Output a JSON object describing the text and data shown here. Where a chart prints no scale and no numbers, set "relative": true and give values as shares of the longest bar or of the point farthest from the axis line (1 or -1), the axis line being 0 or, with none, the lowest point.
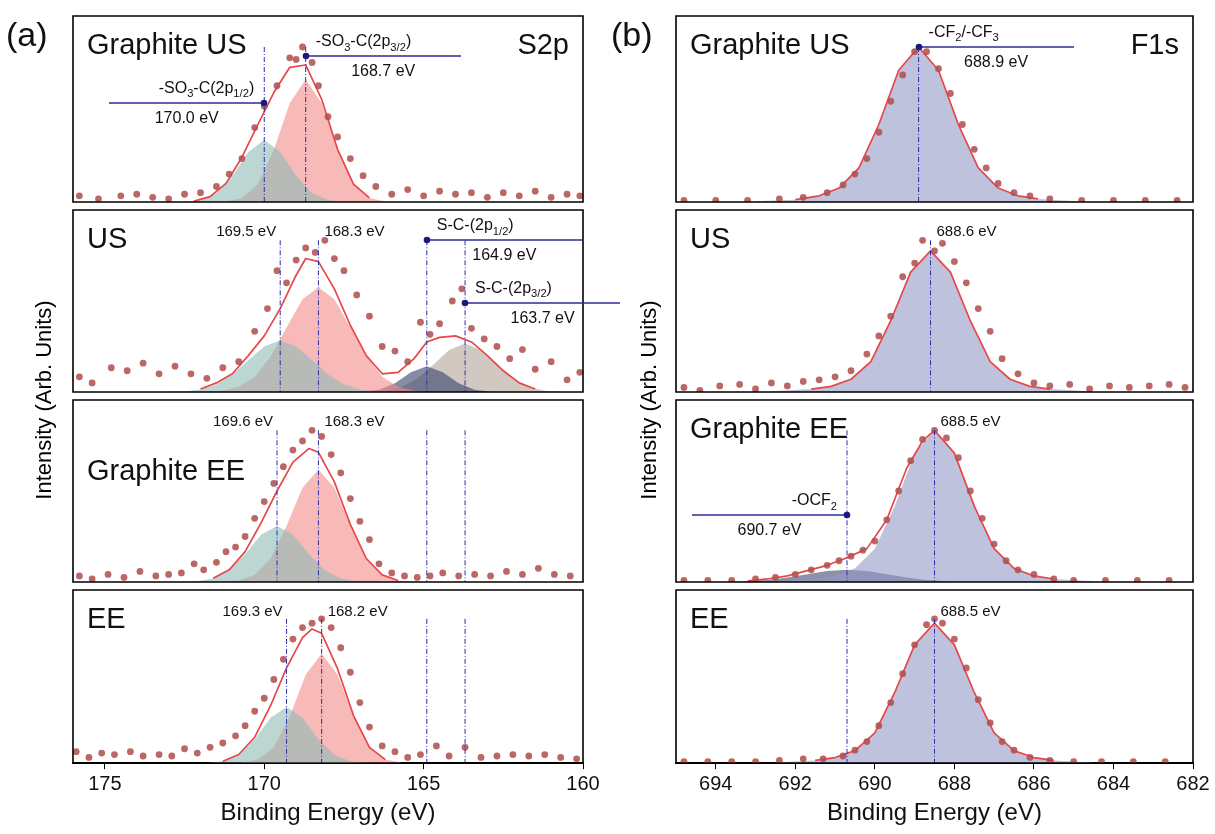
{
  "chart_data": [
    {
      "type": "line",
      "title": "Graphite US",
      "subtitle": "S2p",
      "ylabel": "Intensity (Arb. Units)",
      "relative": true,
      "tick_labels": false,
      "xlim": [
        176,
        160
      ],
      "xticks": [
        175,
        170,
        165,
        160
      ],
      "annotations": [
        "(a)",
        {
          "text": "-SO$_{3}$-C(2p$_{1/2}$)",
          "x": 170.0,
          "y": 0.64
        },
        {
          "text": "-SO$_{3}$-C(2p$_{3/2}$)",
          "x": 168.7,
          "y": 0.94
        }
      ],
      "ref_lines": [
        {
          "axis": "x",
          "value": 170.0,
          "label": "170.0 eV"
        },
        {
          "axis": "x",
          "value": 168.7,
          "label": "168.7 eV"
        }
      ],
      "series": [
        {
          "type": "area",
          "color": "#8dbab6",
          "x": [
            172.5,
            172.0,
            171.5,
            171.0,
            170.5,
            170.0,
            169.5,
            169.0,
            168.5,
            168.0,
            167.5
          ],
          "values": [
            0.002,
            0.013,
            0.058,
            0.17,
            0.323,
            0.4,
            0.323,
            0.17,
            0.058,
            0.013,
            0.002
          ]
        },
        {
          "type": "area",
          "color": "#f48a8a",
          "x": [
            171.2,
            170.7,
            170.2,
            169.7,
            169.2,
            168.7,
            168.2,
            167.7,
            167.2,
            166.7,
            166.2
          ],
          "values": [
            0.004,
            0.026,
            0.115,
            0.336,
            0.638,
            0.79,
            0.638,
            0.336,
            0.115,
            0.026,
            0.004
          ]
        },
        {
          "type": "line",
          "color": "#e8474a",
          "x": [
            172.2,
            171.7,
            171.2,
            170.7,
            170.2,
            169.7,
            169.2,
            168.7,
            168.2,
            167.7,
            167.2,
            166.7
          ],
          "values": [
            0.006,
            0.035,
            0.12,
            0.289,
            0.5,
            0.706,
            0.869,
            0.884,
            0.663,
            0.34,
            0.115,
            0.026
          ]
        },
        {
          "type": "scatter",
          "color": "#b0504e",
          "x": [
            175.8,
            175.2,
            174.5,
            174,
            173.5,
            173,
            172.5,
            172,
            171.5,
            171.1,
            170.7,
            170.3,
            170.0,
            169.6,
            169.2,
            169.0,
            168.8,
            168.5,
            168.3,
            168,
            167.7,
            167.3,
            166.9,
            166.5,
            166,
            165.5,
            165,
            164.5,
            164,
            163.5,
            163,
            162.5,
            162,
            161.5,
            161,
            160.5,
            160.1
          ],
          "values": [
            0.04,
            0.02,
            0.04,
            0.05,
            0.03,
            0.02,
            0.05,
            0.06,
            0.1,
            0.18,
            0.28,
            0.48,
            0.62,
            0.75,
            0.93,
            0.92,
            1.0,
            0.9,
            0.75,
            0.55,
            0.42,
            0.28,
            0.17,
            0.1,
            0.05,
            0.08,
            0.04,
            0.07,
            0.05,
            0.06,
            0.03,
            0.06,
            0.04,
            0.07,
            0.03,
            0.05,
            0.04
          ]
        }
      ]
    },
    {
      "type": "line",
      "title": "US",
      "relative": true,
      "tick_labels": false,
      "xlim": [
        176,
        160
      ],
      "xticks": [
        175,
        170,
        165,
        160
      ],
      "annotations": [
        {
          "text": "S-C-(2p$_{1/2}$)",
          "x": 164.9,
          "y": 1.0
        },
        {
          "text": "S-C-(2p$_{3/2}$)",
          "x": 163.7,
          "y": 0.59
        }
      ],
      "ref_lines": [
        {
          "axis": "x",
          "value": 169.5,
          "label": "169.5 eV"
        },
        {
          "axis": "x",
          "value": 168.3,
          "label": "168.3 eV"
        },
        {
          "axis": "x",
          "value": 164.9,
          "label": "164.9 eV"
        },
        {
          "axis": "x",
          "value": 163.7,
          "label": "163.7 eV"
        }
      ],
      "series": [
        {
          "type": "area",
          "color": "#8dbab6",
          "x": [
            173,
            172.5,
            172,
            171.5,
            171,
            170.5,
            170,
            169.5,
            169,
            168.5,
            168,
            167.5,
            167,
            166.5,
            166
          ],
          "values": [
            0.001,
            0.004,
            0.017,
            0.05,
            0.115,
            0.21,
            0.3,
            0.34,
            0.3,
            0.21,
            0.115,
            0.05,
            0.017,
            0.004,
            0.001
          ]
        },
        {
          "type": "area",
          "color": "#f48a8a",
          "x": [
            171.8,
            171.3,
            170.8,
            170.3,
            169.8,
            169.3,
            168.8,
            168.3,
            167.8,
            167.3,
            166.8,
            166.3,
            165.8,
            165.3,
            164.8
          ],
          "values": [
            0.002,
            0.009,
            0.034,
            0.1,
            0.234,
            0.426,
            0.612,
            0.69,
            0.612,
            0.426,
            0.234,
            0.1,
            0.034,
            0.009,
            0.002
          ]
        },
        {
          "type": "area",
          "color": "#33406a",
          "x": [
            166.9,
            166.4,
            165.9,
            165.4,
            164.9,
            164.4,
            163.9,
            163.4,
            162.9
          ],
          "values": [
            0.002,
            0.015,
            0.057,
            0.13,
            0.17,
            0.13,
            0.057,
            0.015,
            0.002
          ]
        },
        {
          "type": "area",
          "color": "#b2a597",
          "x": [
            166.7,
            166.2,
            165.7,
            165.2,
            164.7,
            164.2,
            163.7,
            163.2,
            162.7,
            162.2,
            161.7,
            161.2,
            160.7
          ],
          "values": [
            0.002,
            0.009,
            0.032,
            0.088,
            0.18,
            0.277,
            0.32,
            0.277,
            0.18,
            0.088,
            0.032,
            0.009,
            0.002
          ]
        },
        {
          "type": "line",
          "color": "#e8474a",
          "x": [
            172,
            171.5,
            171,
            170.5,
            170,
            169.5,
            169,
            168.7,
            168.3,
            167.8,
            167.3,
            166.8,
            166.3,
            165.8,
            165.3,
            164.9,
            164.5,
            164,
            163.5,
            163,
            162.5,
            162,
            161.5
          ],
          "values": [
            0.02,
            0.06,
            0.12,
            0.24,
            0.37,
            0.55,
            0.77,
            0.88,
            0.86,
            0.68,
            0.44,
            0.24,
            0.12,
            0.13,
            0.22,
            0.33,
            0.36,
            0.37,
            0.33,
            0.24,
            0.14,
            0.06,
            0.02
          ]
        },
        {
          "type": "scatter",
          "color": "#b0504e",
          "x": [
            175.8,
            175.4,
            174.8,
            174.3,
            173.8,
            173.3,
            172.8,
            172.3,
            171.8,
            171.3,
            170.8,
            170.3,
            169.9,
            169.6,
            169.3,
            169.0,
            168.7,
            168.4,
            168.1,
            167.8,
            167.5,
            167.1,
            166.7,
            166.3,
            165.9,
            165.5,
            165.1,
            164.8,
            164.5,
            164.1,
            163.8,
            163.5,
            163.1,
            162.7,
            162.3,
            161.9,
            161.5,
            161,
            160.5,
            160.1
          ],
          "values": [
            0.1,
            0.06,
            0.16,
            0.14,
            0.19,
            0.12,
            0.17,
            0.12,
            0.09,
            0.16,
            0.2,
            0.4,
            0.55,
            0.8,
            0.72,
            0.87,
            0.95,
            0.92,
            1.0,
            0.88,
            0.8,
            0.64,
            0.5,
            0.3,
            0.27,
            0.2,
            0.46,
            0.38,
            0.45,
            0.6,
            0.68,
            0.42,
            0.35,
            0.3,
            0.22,
            0.28,
            0.15,
            0.2,
            0.08,
            0.13
          ]
        }
      ]
    },
    {
      "type": "line",
      "title": "Graphite EE",
      "relative": true,
      "tick_labels": false,
      "xlim": [
        176,
        160
      ],
      "xticks": [
        175,
        170,
        165,
        160
      ],
      "ref_lines": [
        {
          "axis": "x",
          "value": 169.6,
          "label": "169.6 eV"
        },
        {
          "axis": "x",
          "value": 168.3,
          "label": "168.3 eV"
        },
        {
          "axis": "x",
          "value": 164.9
        },
        {
          "axis": "x",
          "value": 163.7
        }
      ],
      "series": [
        {
          "type": "area",
          "color": "#8dbab6",
          "x": [
            172.6,
            172.1,
            171.6,
            171.1,
            170.6,
            170.1,
            169.6,
            169.1,
            168.6,
            168.1,
            167.6,
            167.1,
            166.6
          ],
          "values": [
            0.001,
            0.005,
            0.023,
            0.078,
            0.185,
            0.311,
            0.37,
            0.311,
            0.185,
            0.078,
            0.023,
            0.005,
            0.001
          ]
        },
        {
          "type": "area",
          "color": "#f48a8a",
          "x": [
            171.3,
            170.8,
            170.3,
            169.8,
            169.3,
            168.8,
            168.3,
            167.8,
            167.3,
            166.8,
            166.3,
            165.8,
            165.3
          ],
          "values": [
            0.001,
            0.01,
            0.047,
            0.155,
            0.37,
            0.622,
            0.74,
            0.622,
            0.37,
            0.155,
            0.047,
            0.01,
            0.001
          ]
        },
        {
          "type": "line",
          "color": "#e8474a",
          "x": [
            171.6,
            171.1,
            170.6,
            170.1,
            169.6,
            169.1,
            168.6,
            168.3,
            167.8,
            167.3,
            166.8,
            166.3,
            165.8
          ],
          "values": [
            0.024,
            0.08,
            0.2,
            0.39,
            0.6,
            0.79,
            0.88,
            0.855,
            0.66,
            0.38,
            0.155,
            0.047,
            0.01
          ]
        },
        {
          "type": "scatter",
          "color": "#b0504e",
          "x": [
            175.8,
            175.4,
            174.9,
            174.4,
            173.9,
            173.4,
            173,
            172.6,
            172.2,
            171.9,
            171.5,
            171.2,
            170.9,
            170.6,
            170.3,
            170.0,
            169.7,
            169.4,
            169.1,
            168.8,
            168.5,
            168.2,
            167.9,
            167.6,
            167.3,
            167,
            166.7,
            166.4,
            166,
            165.6,
            165.2,
            164.8,
            164.4,
            163.9,
            163.4,
            162.9,
            162.4,
            161.9,
            161.4,
            160.9,
            160.4
          ],
          "values": [
            0.04,
            0.02,
            0.05,
            0.03,
            0.07,
            0.04,
            0.05,
            0.06,
            0.12,
            0.08,
            0.13,
            0.2,
            0.23,
            0.3,
            0.42,
            0.53,
            0.65,
            0.76,
            0.87,
            0.93,
            1.0,
            0.96,
            0.84,
            0.72,
            0.55,
            0.4,
            0.28,
            0.12,
            0.06,
            0.04,
            0.03,
            0.04,
            0.06,
            0.04,
            0.05,
            0.04,
            0.07,
            0.05,
            0.09,
            0.05,
            0.04
          ]
        }
      ]
    },
    {
      "type": "line",
      "title": "EE",
      "xlabel": "Binding Energy (eV)",
      "relative": true,
      "tick_labels": "x",
      "xlim": [
        176,
        160
      ],
      "xticks": [
        175,
        170,
        165,
        160
      ],
      "ref_lines": [
        {
          "axis": "x",
          "value": 169.3,
          "label": "169.3 eV"
        },
        {
          "axis": "x",
          "value": 168.2,
          "label": "168.2 eV"
        },
        {
          "axis": "x",
          "value": 164.9
        },
        {
          "axis": "x",
          "value": 163.7
        }
      ],
      "series": [
        {
          "type": "area",
          "color": "#8dbab6",
          "x": [
            171.8,
            171.3,
            170.8,
            170.3,
            169.8,
            169.3,
            168.8,
            168.3,
            167.8,
            167.3,
            166.8
          ],
          "values": [
            0.002,
            0.013,
            0.057,
            0.166,
            0.315,
            0.39,
            0.315,
            0.166,
            0.057,
            0.013,
            0.002
          ]
        },
        {
          "type": "area",
          "color": "#f48a8a",
          "x": [
            170.7,
            170.2,
            169.7,
            169.2,
            168.7,
            168.2,
            167.7,
            167.2,
            166.7,
            166.2,
            165.7
          ],
          "values": [
            0.004,
            0.025,
            0.111,
            0.323,
            0.613,
            0.76,
            0.613,
            0.323,
            0.111,
            0.025,
            0.004
          ]
        },
        {
          "type": "line",
          "color": "#e8474a",
          "x": [
            171.3,
            170.8,
            170.3,
            169.8,
            169.3,
            168.8,
            168.5,
            168.2,
            167.7,
            167.2,
            166.7,
            166.2
          ],
          "values": [
            0.013,
            0.06,
            0.18,
            0.4,
            0.66,
            0.87,
            0.93,
            0.9,
            0.655,
            0.33,
            0.11,
            0.025
          ]
        },
        {
          "type": "scatter",
          "color": "#b0504e",
          "x": [
            175.9,
            175.5,
            175.1,
            174.7,
            174.2,
            173.8,
            173.3,
            172.9,
            172.5,
            172.1,
            171.7,
            171.3,
            170.9,
            170.6,
            170.3,
            170,
            169.7,
            169.4,
            169.1,
            168.8,
            168.5,
            168.2,
            167.9,
            167.6,
            167.3,
            167,
            166.7,
            166.3,
            165.9,
            165.5,
            165.1,
            164.6,
            164.2,
            163.7,
            163.2,
            162.7,
            162.2,
            161.7,
            161.2,
            160.7,
            160.2
          ],
          "values": [
            0.08,
            0.04,
            0.07,
            0.06,
            0.08,
            0.05,
            0.06,
            0.05,
            0.1,
            0.07,
            0.11,
            0.14,
            0.19,
            0.26,
            0.36,
            0.45,
            0.58,
            0.72,
            0.86,
            0.94,
            0.97,
            1.0,
            0.94,
            0.8,
            0.63,
            0.42,
            0.25,
            0.12,
            0.08,
            0.04,
            0.06,
            0.12,
            0.05,
            0.11,
            0.04,
            0.05,
            0.06,
            0.05,
            0.06,
            0.04,
            0.03
          ]
        }
      ]
    },
    {
      "type": "line",
      "title": "Graphite US",
      "subtitle": "F1s",
      "ylabel": "Intensity (Arb. Units)",
      "relative": true,
      "tick_labels": false,
      "xlim": [
        695,
        682
      ],
      "xticks": [
        694,
        692,
        690,
        688,
        686,
        684,
        682
      ],
      "annotations": [
        "(b)",
        {
          "text": "-CF$_{2}$/-CF$_{3}$",
          "x": 688.9,
          "y": 1.0
        }
      ],
      "ref_lines": [
        {
          "axis": "x",
          "value": 688.9,
          "label": "688.9 eV"
        }
      ],
      "series": [
        {
          "type": "area",
          "color": "#9499c4",
          "x": [
            693,
            692,
            691.4,
            690.9,
            690.4,
            689.9,
            689.4,
            688.9,
            688.4,
            687.9,
            687.4,
            686.9,
            686.4,
            685.9,
            684.9
          ],
          "values": [
            0.005,
            0.015,
            0.04,
            0.09,
            0.22,
            0.5,
            0.85,
            1.0,
            0.85,
            0.5,
            0.22,
            0.09,
            0.04,
            0.02,
            0.005
          ]
        },
        {
          "type": "line",
          "color": "#e8474a",
          "x": [
            692,
            691.4,
            690.9,
            690.4,
            689.9,
            689.4,
            688.9,
            688.4,
            687.9,
            687.4,
            686.9,
            686.4,
            685.9
          ],
          "values": [
            0.015,
            0.04,
            0.09,
            0.22,
            0.5,
            0.85,
            1.0,
            0.85,
            0.5,
            0.22,
            0.09,
            0.04,
            0.02
          ]
        },
        {
          "type": "scatter",
          "color": "#b0504e",
          "x": [
            694.8,
            694,
            693.2,
            692.4,
            691.8,
            691.2,
            690.8,
            690.5,
            690.2,
            689.9,
            689.6,
            689.3,
            689.0,
            688.7,
            688.4,
            688.1,
            687.8,
            687.5,
            687.2,
            686.9,
            686.5,
            686.1,
            685.6,
            684.8,
            684,
            683.2,
            682.4
          ],
          "values": [
            0.01,
            0.01,
            0.01,
            0.02,
            0.03,
            0.06,
            0.11,
            0.18,
            0.28,
            0.45,
            0.65,
            0.82,
            0.97,
            0.97,
            0.86,
            0.7,
            0.5,
            0.34,
            0.22,
            0.12,
            0.06,
            0.04,
            0.02,
            0.01,
            0.01,
            0.01,
            0.01
          ]
        }
      ]
    },
    {
      "type": "line",
      "title": "US",
      "relative": true,
      "tick_labels": false,
      "xlim": [
        695,
        682
      ],
      "xticks": [
        694,
        692,
        690,
        688,
        686,
        684,
        682
      ],
      "ref_lines": [
        {
          "axis": "x",
          "value": 688.6,
          "label": "688.6 eV"
        }
      ],
      "series": [
        {
          "type": "area",
          "color": "#9499c4",
          "x": [
            692.6,
            691.6,
            691.1,
            690.6,
            690.1,
            689.6,
            689.1,
            688.6,
            688.1,
            687.6,
            687.1,
            686.6,
            686.1,
            685.6,
            684.6
          ],
          "values": [
            0.005,
            0.019,
            0.037,
            0.084,
            0.2,
            0.47,
            0.79,
            0.93,
            0.79,
            0.47,
            0.2,
            0.084,
            0.037,
            0.019,
            0.005
          ]
        },
        {
          "type": "line",
          "color": "#e8474a",
          "x": [
            691.6,
            691.1,
            690.6,
            690.1,
            689.6,
            689.1,
            688.6,
            688.1,
            687.6,
            687.1,
            686.6,
            686.1,
            685.6
          ],
          "values": [
            0.019,
            0.037,
            0.084,
            0.2,
            0.47,
            0.79,
            0.93,
            0.79,
            0.47,
            0.2,
            0.084,
            0.037,
            0.019
          ]
        },
        {
          "type": "scatter",
          "color": "#b0504e",
          "x": [
            694.8,
            694.4,
            693.9,
            693.4,
            693,
            692.6,
            692.2,
            691.8,
            691.4,
            691,
            690.6,
            690.2,
            689.9,
            689.6,
            689.3,
            689.0,
            688.8,
            688.5,
            688.3,
            688.0,
            687.7,
            687.4,
            687.1,
            686.8,
            686.4,
            686,
            685.6,
            685.1,
            684.6,
            684.1,
            683.6,
            683.1,
            682.6,
            682.2
          ],
          "values": [
            0.03,
            0.01,
            0.04,
            0.05,
            0.02,
            0.06,
            0.04,
            0.07,
            0.08,
            0.1,
            0.14,
            0.25,
            0.37,
            0.5,
            0.76,
            0.85,
            1.0,
            0.93,
            0.98,
            0.86,
            0.72,
            0.55,
            0.4,
            0.22,
            0.12,
            0.06,
            0.04,
            0.05,
            0.02,
            0.04,
            0.03,
            0.04,
            0.05,
            0.03
          ]
        }
      ]
    },
    {
      "type": "line",
      "title": "Graphite EE",
      "relative": true,
      "tick_labels": false,
      "xlim": [
        695,
        682
      ],
      "xticks": [
        694,
        692,
        690,
        688,
        686,
        684,
        682
      ],
      "annotations": [
        {
          "text": "-OCF$_{2}$",
          "x": 690.7,
          "y": 0.44
        }
      ],
      "ref_lines": [
        {
          "axis": "x",
          "value": 688.5,
          "label": "688.5 eV"
        },
        {
          "axis": "x",
          "value": 690.7,
          "label": "690.7 eV"
        }
      ],
      "series": [
        {
          "type": "area",
          "color": "#9499c4",
          "x": [
            692.5,
            691.5,
            691,
            690.5,
            690,
            689.5,
            689,
            688.5,
            688,
            687.5,
            687,
            686.5,
            686,
            685.5,
            684.5
          ],
          "values": [
            0.005,
            0.02,
            0.04,
            0.09,
            0.22,
            0.5,
            0.85,
            1.0,
            0.85,
            0.5,
            0.22,
            0.09,
            0.04,
            0.02,
            0.005
          ]
        },
        {
          "type": "area",
          "color": "#3e4770",
          "x": [
            693.7,
            693.2,
            692.7,
            692.2,
            691.7,
            691.2,
            690.7,
            690.2,
            689.7,
            689.2,
            688.7,
            688.2
          ],
          "values": [
            0.002,
            0.005,
            0.014,
            0.03,
            0.051,
            0.072,
            0.08,
            0.072,
            0.051,
            0.03,
            0.014,
            0.005
          ]
        },
        {
          "type": "line",
          "color": "#e8474a",
          "x": [
            693.2,
            692.7,
            692.2,
            691.7,
            691.2,
            690.7,
            690.2,
            689.7,
            689.2,
            688.8,
            688.5,
            688,
            687.5,
            687,
            686.5,
            686,
            685.5
          ],
          "values": [
            0.008,
            0.02,
            0.04,
            0.075,
            0.11,
            0.16,
            0.22,
            0.41,
            0.75,
            0.93,
            1.0,
            0.85,
            0.5,
            0.22,
            0.09,
            0.04,
            0.02
          ]
        },
        {
          "type": "scatter",
          "color": "#b0504e",
          "x": [
            694.8,
            694.2,
            693.6,
            693,
            692.5,
            692,
            691.6,
            691.2,
            690.9,
            690.6,
            690.3,
            690,
            689.7,
            689.4,
            689.1,
            688.8,
            688.5,
            688.2,
            687.9,
            687.6,
            687.3,
            687,
            686.7,
            686.4,
            686,
            685.5,
            685,
            684.2,
            683.4,
            682.6
          ],
          "values": [
            0.01,
            0.01,
            0.01,
            0.02,
            0.03,
            0.05,
            0.08,
            0.11,
            0.14,
            0.17,
            0.21,
            0.27,
            0.41,
            0.6,
            0.8,
            0.94,
            1.0,
            0.95,
            0.82,
            0.6,
            0.42,
            0.25,
            0.14,
            0.08,
            0.05,
            0.02,
            0.01,
            0.01,
            0.01,
            0.01
          ]
        }
      ]
    },
    {
      "type": "line",
      "title": "EE",
      "xlabel": "Binding Energy (eV)",
      "relative": true,
      "tick_labels": "x",
      "xlim": [
        695,
        682
      ],
      "xticks": [
        694,
        692,
        690,
        688,
        686,
        684,
        682
      ],
      "ref_lines": [
        {
          "axis": "x",
          "value": 688.5,
          "label": "688.5 eV"
        },
        {
          "axis": "x",
          "value": 690.7
        }
      ],
      "series": [
        {
          "type": "area",
          "color": "#9499c4",
          "x": [
            692.5,
            691.5,
            691,
            690.5,
            690,
            689.5,
            689,
            688.5,
            688,
            687.5,
            687,
            686.5,
            686,
            685.5,
            684.5
          ],
          "values": [
            0.005,
            0.019,
            0.039,
            0.087,
            0.21,
            0.49,
            0.82,
            0.97,
            0.82,
            0.49,
            0.21,
            0.087,
            0.039,
            0.019,
            0.005
          ]
        },
        {
          "type": "line",
          "color": "#e8474a",
          "x": [
            691.5,
            691,
            690.5,
            690,
            689.5,
            689,
            688.5,
            688,
            687.5,
            687,
            686.5,
            686,
            685.5
          ],
          "values": [
            0.019,
            0.039,
            0.087,
            0.21,
            0.49,
            0.82,
            0.97,
            0.82,
            0.49,
            0.21,
            0.087,
            0.039,
            0.019
          ]
        },
        {
          "type": "scatter",
          "color": "#b0504e",
          "x": [
            694.8,
            694.2,
            693.6,
            693,
            692.4,
            691.8,
            691.3,
            690.8,
            690.5,
            690.2,
            689.9,
            689.6,
            689.3,
            689,
            688.7,
            688.5,
            688.3,
            688,
            687.7,
            687.4,
            687.1,
            686.8,
            686.5,
            686.1,
            685.6,
            685,
            684.3,
            683.5,
            682.7
          ],
          "values": [
            0.01,
            0.01,
            0.01,
            0.01,
            0.02,
            0.03,
            0.03,
            0.05,
            0.09,
            0.15,
            0.26,
            0.42,
            0.62,
            0.82,
            0.96,
            1.0,
            0.97,
            0.86,
            0.66,
            0.44,
            0.28,
            0.15,
            0.09,
            0.04,
            0.02,
            0.01,
            0.01,
            0.01,
            0.01
          ]
        }
      ]
    }
  ]
}
